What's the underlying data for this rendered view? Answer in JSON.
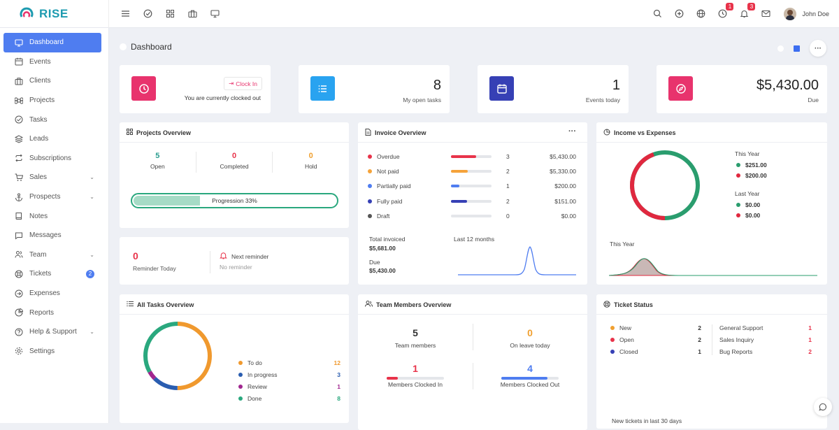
{
  "brand": {
    "name": "RISE",
    "accent": "#1e9bb0"
  },
  "topbar": {
    "left_icons": [
      "menu-icon",
      "check-circle-icon",
      "grid-icon",
      "briefcase-icon",
      "monitor-icon"
    ],
    "right_icons": [
      "search-icon",
      "plus-circle-icon",
      "globe-icon",
      "clock-icon",
      "bell-icon",
      "mail-icon"
    ],
    "clock_badge": "1",
    "bell_badge": "3",
    "user_name": "John Doe"
  },
  "sidebar": {
    "items": [
      {
        "label": "Dashboard",
        "icon": "monitor-icon",
        "active": true
      },
      {
        "label": "Events",
        "icon": "calendar-icon"
      },
      {
        "label": "Clients",
        "icon": "briefcase-icon"
      },
      {
        "label": "Projects",
        "icon": "command-icon"
      },
      {
        "label": "Tasks",
        "icon": "check-circle-icon"
      },
      {
        "label": "Leads",
        "icon": "layers-icon"
      },
      {
        "label": "Subscriptions",
        "icon": "repeat-icon"
      },
      {
        "label": "Sales",
        "icon": "cart-icon",
        "chevron": true
      },
      {
        "label": "Prospects",
        "icon": "anchor-icon",
        "chevron": true
      },
      {
        "label": "Notes",
        "icon": "book-icon"
      },
      {
        "label": "Messages",
        "icon": "message-icon"
      },
      {
        "label": "Team",
        "icon": "users-icon",
        "chevron": true
      },
      {
        "label": "Tickets",
        "icon": "lifebuoy-icon",
        "count": "2"
      },
      {
        "label": "Expenses",
        "icon": "arrow-circle-icon"
      },
      {
        "label": "Reports",
        "icon": "pie-icon"
      },
      {
        "label": "Help & Support",
        "icon": "help-icon",
        "chevron": true
      },
      {
        "label": "Settings",
        "icon": "settings-icon"
      }
    ]
  },
  "page": {
    "title": "Dashboard"
  },
  "clock": {
    "button": "Clock In",
    "status": "You are currently clocked out",
    "color": "#e8336d"
  },
  "open_tasks": {
    "value": "8",
    "label": "My open tasks",
    "color": "#29a3f0"
  },
  "events_today": {
    "value": "1",
    "label": "Events today",
    "color": "#3640b5"
  },
  "due": {
    "value": "$5,430.00",
    "label": "Due",
    "color": "#e8336d"
  },
  "projects_overview": {
    "title": "Projects Overview",
    "stats": [
      {
        "value": "5",
        "label": "Open",
        "color": "#2a9d8f"
      },
      {
        "value": "0",
        "label": "Completed",
        "color": "#e8334a"
      },
      {
        "value": "0",
        "label": "Hold",
        "color": "#f0a030"
      }
    ],
    "progress_label": "Progression 33%",
    "progress": 33
  },
  "reminder": {
    "value": "0",
    "label": "Reminder Today",
    "next_title": "Next reminder",
    "next_value": "No reminder"
  },
  "invoice": {
    "title": "Invoice Overview",
    "rows": [
      {
        "label": "Overdue",
        "count": "3",
        "amount": "$5,430.00",
        "color": "#e8334a",
        "fill": 0.62
      },
      {
        "label": "Not paid",
        "count": "2",
        "amount": "$5,330.00",
        "color": "#f5a33a",
        "fill": 0.42
      },
      {
        "label": "Partially paid",
        "count": "1",
        "amount": "$200.00",
        "color": "#4f7df0",
        "fill": 0.2
      },
      {
        "label": "Fully paid",
        "count": "2",
        "amount": "$151.00",
        "color": "#3640b5",
        "fill": 0.4
      },
      {
        "label": "Draft",
        "count": "0",
        "amount": "$0.00",
        "color": "#555555",
        "fill": 0
      }
    ],
    "total_label": "Total invoiced",
    "total_value": "$5,681.00",
    "due_label": "Due",
    "due_value": "$5,430.00",
    "chart_label": "Last 12 months"
  },
  "income": {
    "title": "Income vs Expenses",
    "this_year_label": "This Year",
    "this_year_income": "$251.00",
    "this_year_expense": "$200.00",
    "last_year_label": "Last Year",
    "last_year_income": "$0.00",
    "last_year_expense": "$0.00",
    "chart_label": "This Year",
    "income_color": "#2a9d6e",
    "expense_color": "#e0283f"
  },
  "all_tasks": {
    "title": "All Tasks Overview",
    "items": [
      {
        "label": "To do",
        "value": "12",
        "color": "#f0992e"
      },
      {
        "label": "In progress",
        "value": "3",
        "color": "#2a5db0"
      },
      {
        "label": "Review",
        "value": "1",
        "color": "#a0268f"
      },
      {
        "label": "Done",
        "value": "8",
        "color": "#2aa87e"
      }
    ]
  },
  "team": {
    "title": "Team Members Overview",
    "members_value": "5",
    "members_label": "Team members",
    "leave_value": "0",
    "leave_label": "On leave today",
    "in_value": "1",
    "in_label": "Members Clocked In",
    "out_value": "4",
    "out_label": "Members Clocked Out"
  },
  "tickets": {
    "title": "Ticket Status",
    "status": [
      {
        "label": "New",
        "value": "2",
        "color": "#f0a030"
      },
      {
        "label": "Open",
        "value": "2",
        "color": "#e8334a"
      },
      {
        "label": "Closed",
        "value": "1",
        "color": "#3640b5"
      }
    ],
    "types": [
      {
        "label": "General Support",
        "value": "1"
      },
      {
        "label": "Sales Inquiry",
        "value": "1"
      },
      {
        "label": "Bug Reports",
        "value": "2"
      }
    ],
    "footer": "New tickets in last 30 days"
  }
}
